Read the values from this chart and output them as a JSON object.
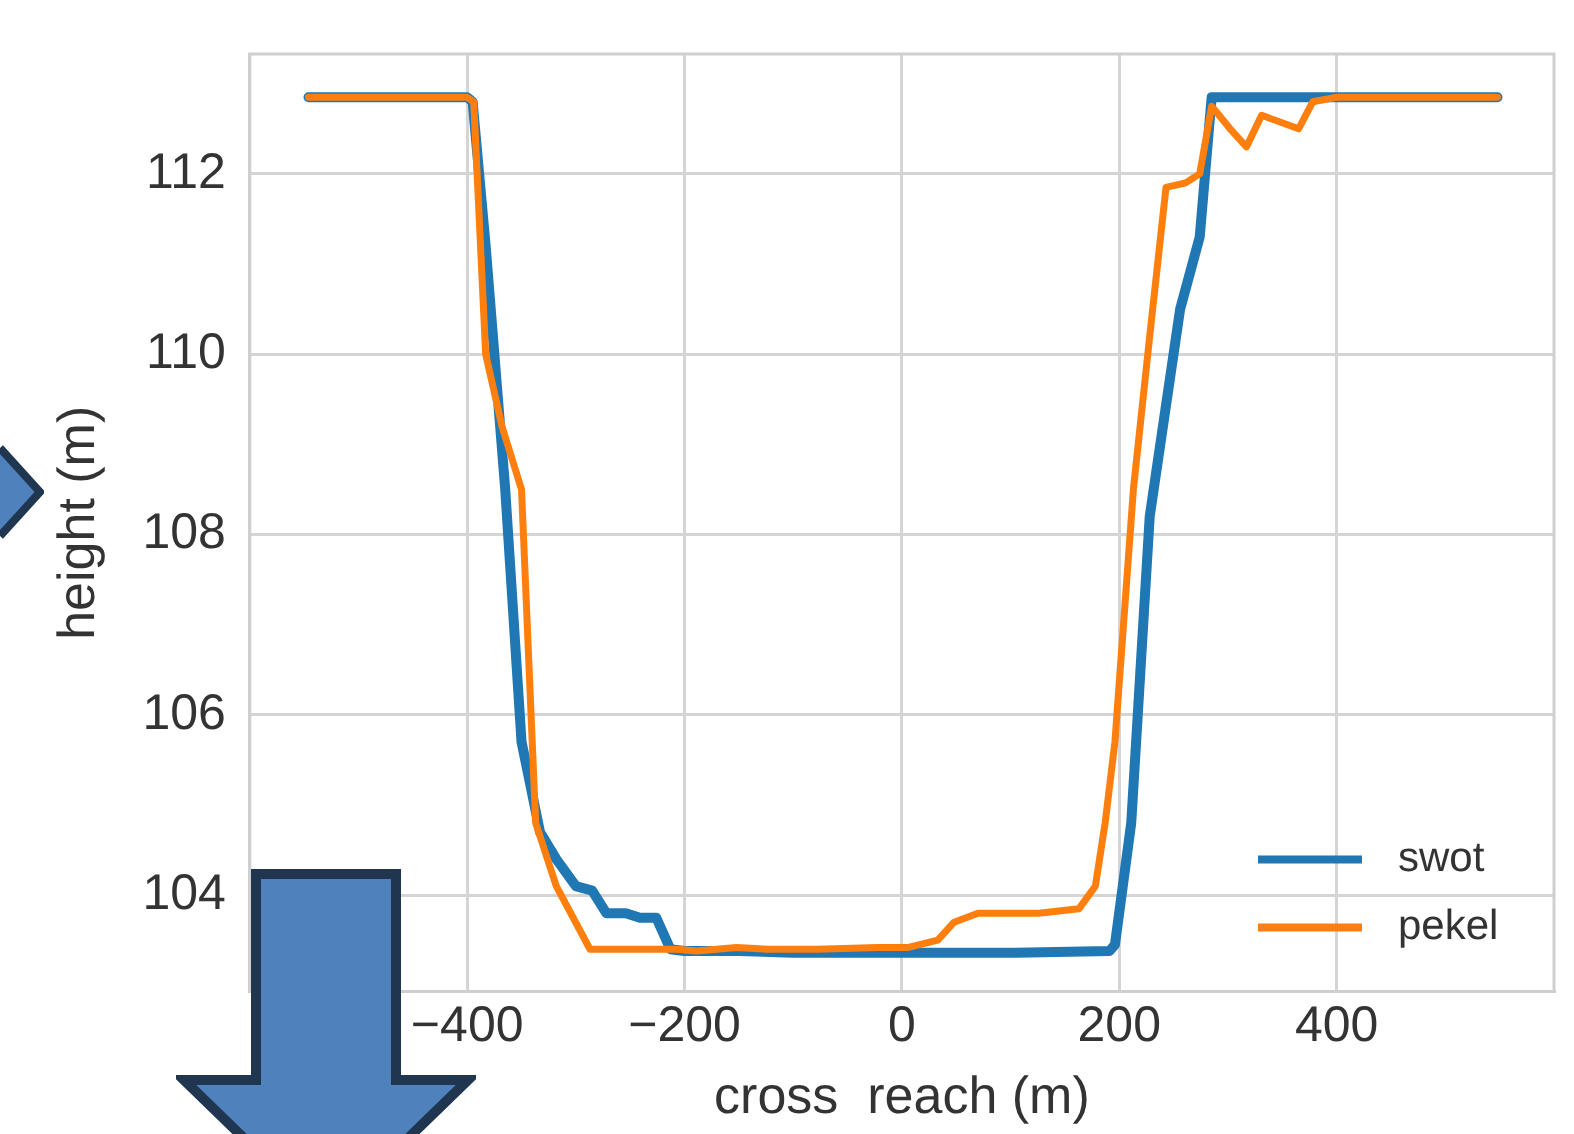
{
  "chart_data": {
    "type": "line",
    "xlabel": "cross  reach (m)",
    "ylabel": "height (m)",
    "xlim": [
      -600,
      600
    ],
    "ylim": [
      102.93,
      113.33
    ],
    "xticks": [
      {
        "value": -400,
        "label": "−400"
      },
      {
        "value": -200,
        "label": "−200"
      },
      0,
      200,
      400
    ],
    "yticks": [
      104,
      106,
      108,
      110,
      112
    ],
    "grid": true,
    "legend": "bottom right",
    "marker": "none",
    "line_style": "solid",
    "series": [
      {
        "name": "swot",
        "color": "#1f77b4",
        "x": [
          -546,
          -400,
          -395,
          -383,
          -365,
          -350,
          -333,
          -318,
          -300,
          -285,
          -272,
          -254,
          -241,
          -226,
          -213,
          -200,
          -150,
          -100,
          0,
          100,
          191,
          196,
          211,
          228,
          256,
          274,
          285,
          400,
          548
        ],
        "values": [
          112.85,
          112.85,
          112.8,
          111.2,
          108.5,
          105.7,
          104.7,
          104.4,
          104.1,
          104.05,
          103.8,
          103.8,
          103.75,
          103.75,
          103.4,
          103.38,
          103.38,
          103.36,
          103.36,
          103.36,
          103.38,
          103.45,
          104.8,
          108.2,
          110.5,
          111.3,
          112.85,
          112.85,
          112.85
        ]
      },
      {
        "name": "pekel",
        "color": "#ff7f0e",
        "x": [
          -546,
          -400,
          -394,
          -383,
          -368,
          -350,
          -337,
          -318,
          -287,
          -263,
          -207,
          -189,
          -152,
          -124,
          -78,
          -22,
          6,
          33,
          48,
          70,
          126,
          163,
          178,
          187,
          196,
          213,
          228,
          243,
          261,
          274,
          285,
          302,
          317,
          331,
          365,
          378,
          400,
          548
        ],
        "values": [
          112.85,
          112.85,
          112.8,
          110,
          109.2,
          108.5,
          104.8,
          104.1,
          103.4,
          103.4,
          103.4,
          103.38,
          103.42,
          103.4,
          103.4,
          103.42,
          103.42,
          103.5,
          103.7,
          103.8,
          103.8,
          103.85,
          104.1,
          104.8,
          105.7,
          108.5,
          110.2,
          111.85,
          111.9,
          112,
          112.75,
          112.5,
          112.3,
          112.65,
          112.5,
          112.8,
          112.85,
          112.85
        ]
      }
    ]
  }
}
